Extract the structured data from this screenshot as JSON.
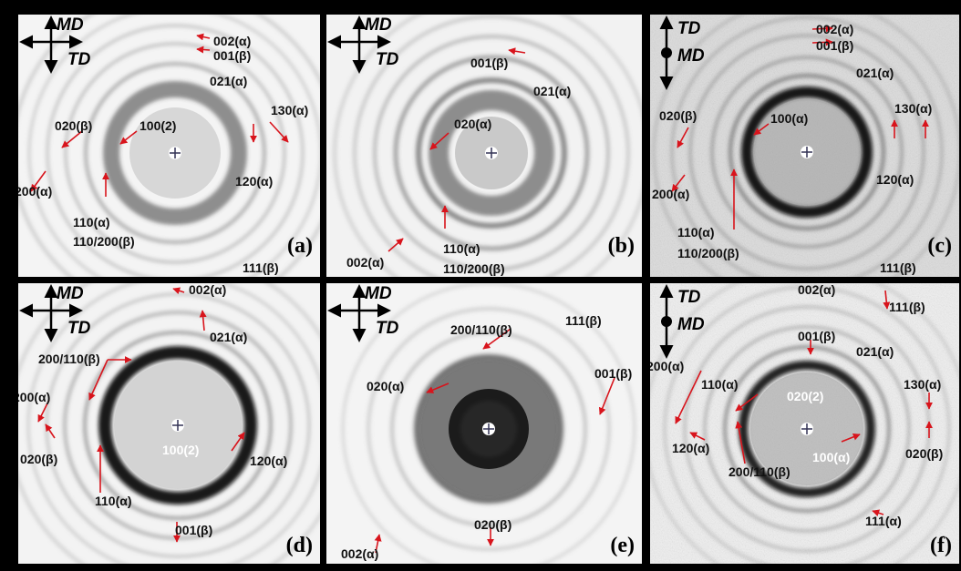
{
  "panels": [
    {
      "id": "a",
      "tag": "(a)",
      "orientation": [
        "MD",
        "TD"
      ],
      "labels": [
        "002(α)",
        "001(β)",
        "021(α)",
        "130(α)",
        "100(2)",
        "020(β)",
        "120(α)",
        "200(α)",
        "110(α)",
        "110/200(β)",
        "111(β)"
      ]
    },
    {
      "id": "b",
      "tag": "(b)",
      "orientation": [
        "MD",
        "TD"
      ],
      "labels": [
        "001(β)",
        "021(α)",
        "020(α)",
        "002(α)",
        "110(α)",
        "110/200(β)"
      ]
    },
    {
      "id": "c",
      "tag": "(c)",
      "orientation": [
        "TD",
        "MD"
      ],
      "labels": [
        "002(α)",
        "001(β)",
        "021(α)",
        "020(β)",
        "100(α)",
        "130(α)",
        "120(α)",
        "200(α)",
        "110(α)",
        "110/200(β)",
        "111(β)"
      ]
    },
    {
      "id": "d",
      "tag": "(d)",
      "orientation": [
        "MD",
        "TD"
      ],
      "labels": [
        "002(α)",
        "021(α)",
        "200/110(β)",
        "200(α)",
        "100(2)",
        "120(α)",
        "020(β)",
        "110(α)",
        "001(β)"
      ]
    },
    {
      "id": "e",
      "tag": "(e)",
      "orientation": [
        "MD",
        "TD"
      ],
      "labels": [
        "111(β)",
        "200/110(β)",
        "020(α)",
        "001(β)",
        "020(β)",
        "002(α)"
      ]
    },
    {
      "id": "f",
      "tag": "(f)",
      "orientation": [
        "TD",
        "MD"
      ],
      "labels": [
        "002(α)",
        "111(β)",
        "001(β)",
        "021(α)",
        "200(α)",
        "110(α)",
        "020(2)",
        "130(α)",
        "120(α)",
        "100(α)",
        "020(β)",
        "200/110(β)",
        "111(α)"
      ]
    }
  ],
  "colors": {
    "arrow": "#d8141c",
    "background": "#000000",
    "text": "#111111"
  }
}
